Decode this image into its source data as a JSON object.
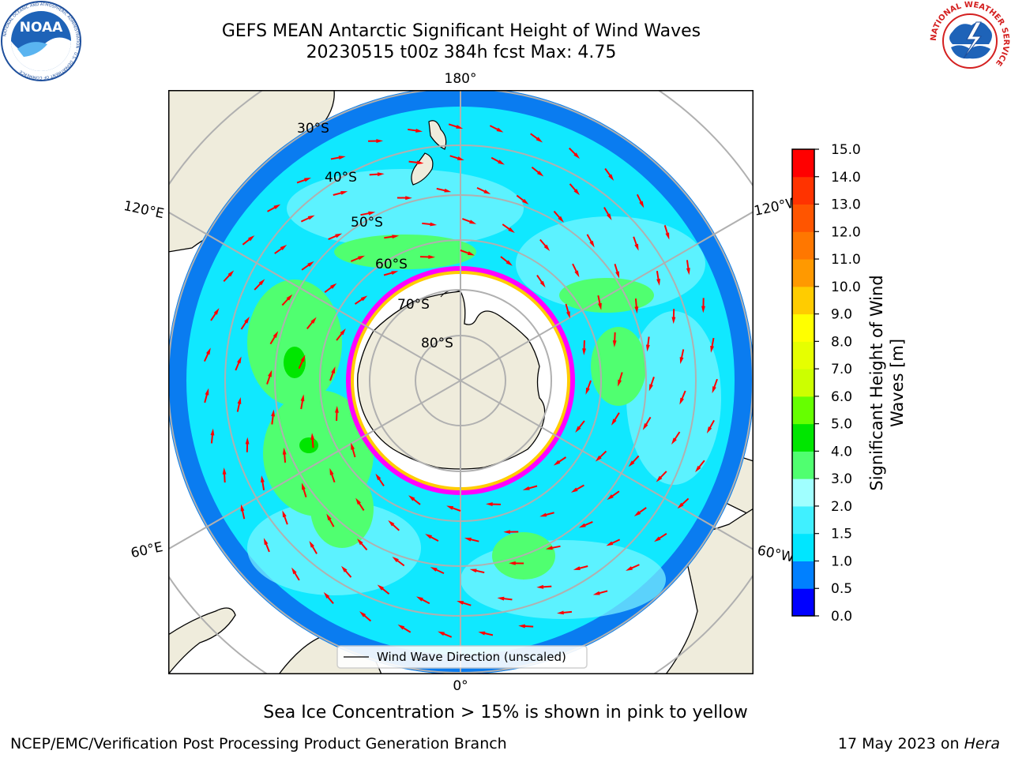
{
  "title": {
    "line1": "GEFS MEAN Antarctic Significant Height of Wind Waves",
    "line2": "20230515 t00z 384h fcst   Max: 4.75"
  },
  "logos": {
    "left": {
      "name": "NOAA",
      "text": "NOAA",
      "ring_text": "NATIONAL OCEANIC AND ATMOSPHERIC ADMINISTRATION · U.S. DEPARTMENT OF COMMERCE"
    },
    "right": {
      "name": "National Weather Service",
      "ring_text": "NATIONAL WEATHER SERVICE"
    }
  },
  "map": {
    "projection": "south polar stereographic",
    "longitude_labels": {
      "top": "180°",
      "bottom": "0°",
      "upper_left": "120°E",
      "lower_left": "60°E",
      "upper_right": "120°W",
      "lower_right": "60°W"
    },
    "latitude_labels": [
      "30°S",
      "40°S",
      "50°S",
      "60°S",
      "70°S",
      "80°S"
    ],
    "legend": "Wind Wave Direction (unscaled)",
    "colors": {
      "land": "#efecdc",
      "sea_ice_edge": [
        "#ff00ff",
        "#ff66cc",
        "#ffcc00"
      ],
      "arrows": "#ff0000",
      "grid": "#b0b0b0"
    }
  },
  "colorbar": {
    "label": "Significant Height of Wind Waves [m]",
    "label_line1": "Significant Height of Wind",
    "label_line2": "Waves [m]",
    "ticks": [
      "0.0",
      "0.5",
      "1.0",
      "1.5",
      "2.0",
      "3.0",
      "4.0",
      "5.0",
      "6.0",
      "7.0",
      "8.0",
      "9.0",
      "10.0",
      "11.0",
      "12.0",
      "13.0",
      "14.0",
      "15.0"
    ],
    "colors": [
      "#0000ff",
      "#0080ff",
      "#00e6ff",
      "#40f0ff",
      "#a0ffff",
      "#50ff70",
      "#00e600",
      "#66ff00",
      "#ccff00",
      "#e6ff00",
      "#ffff00",
      "#ffcc00",
      "#ff9900",
      "#ff7700",
      "#ff5500",
      "#ff3300",
      "#ff0000"
    ]
  },
  "ice_note": "Sea Ice Concentration > 15% is shown in pink to yellow",
  "footer": {
    "left": "NCEP/EMC/Verification Post Processing Product Generation Branch",
    "right_prefix": "17 May 2023 on ",
    "right_host": "Hera"
  }
}
